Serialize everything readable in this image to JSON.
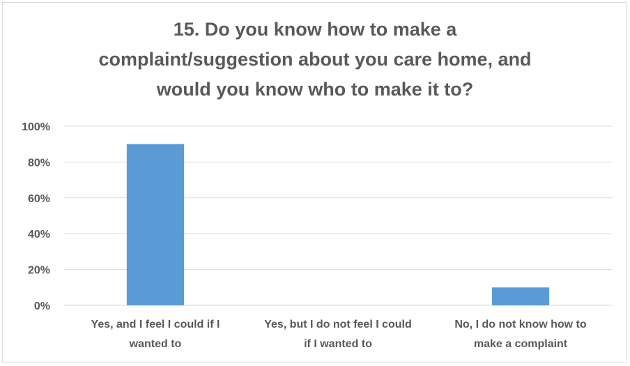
{
  "chart_data": {
    "type": "bar",
    "title_lines": [
      "15. Do you know how to make a",
      "complaint/suggestion about you care home, and",
      "would you know who to make it to?"
    ],
    "categories": [
      [
        "Yes, and I feel I could if I",
        "wanted to"
      ],
      [
        "Yes, but I do not feel I could",
        "if I wanted to"
      ],
      [
        "No, I do not know how to",
        "make a complaint"
      ]
    ],
    "values": [
      90,
      0,
      10
    ],
    "y_ticks": [
      "0%",
      "20%",
      "40%",
      "60%",
      "80%",
      "100%"
    ],
    "ylim": [
      0,
      100
    ],
    "grid": true,
    "colors": {
      "bar": "#5b9bd5",
      "grid": "#d9d9d9",
      "text": "#595959"
    }
  }
}
